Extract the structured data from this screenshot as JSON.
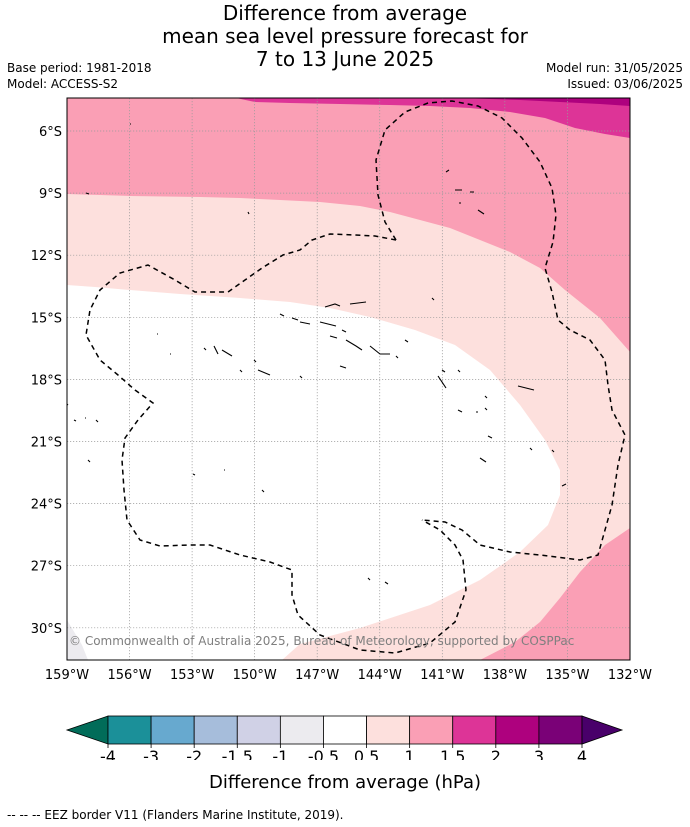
{
  "title": {
    "line1": "Difference from average",
    "line2": "mean sea level pressure forecast for",
    "line3": "7 to 13 June 2025"
  },
  "meta": {
    "base_period": "Base period: 1981-2018",
    "model": "Model: ACCESS-S2",
    "model_run": "Model run: 31/05/2025",
    "issued": "Issued: 03/06/2025"
  },
  "map": {
    "lat_labels": [
      "6°S",
      "9°S",
      "12°S",
      "15°S",
      "18°S",
      "21°S",
      "24°S",
      "27°S",
      "30°S"
    ],
    "lon_labels": [
      "159°W",
      "156°W",
      "153°W",
      "150°W",
      "147°W",
      "144°W",
      "141°W",
      "138°W",
      "135°W",
      "132°W"
    ],
    "copyright": "© Commonwealth of Australia 2025, Bureau of Meteorology, supported by COSPPac",
    "colors": {
      "band_0_5_1": "#fde0dd",
      "band_1_1_5": "#fa9fb5",
      "band_1_5_2": "#dd3497",
      "band_2_3": "#ae017e",
      "band_neg": "#ecebef"
    }
  },
  "colorbar": {
    "ticks": [
      "-4",
      "-3",
      "-2",
      "-1.5",
      "-1",
      "-0.5",
      "0.5",
      "1",
      "1.5",
      "2",
      "3",
      "4"
    ],
    "colors": [
      "#1b9099",
      "#67a9cf",
      "#a6bddb",
      "#d0d1e6",
      "#ecebef",
      "#ffffff",
      "#fde0dd",
      "#fa9fb5",
      "#dd3497",
      "#ae017e",
      "#7a0177"
    ],
    "under_color": "#016c59",
    "over_color": "#49006a",
    "label": "Difference from average (hPa)"
  },
  "footer": "--  --  -- EEZ border V11 (Flanders Marine Institute, 2019)."
}
